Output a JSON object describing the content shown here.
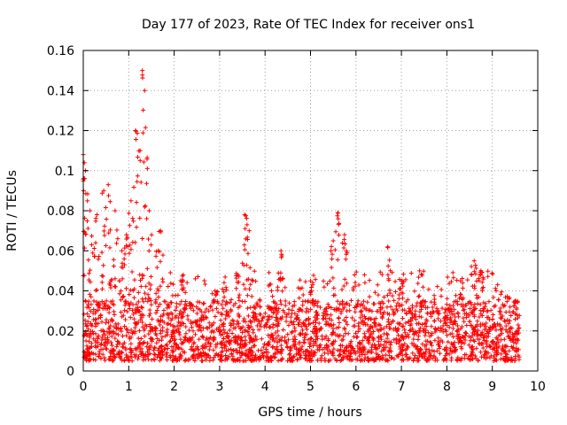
{
  "chart_data": {
    "type": "scatter",
    "title": "Day 177 of 2023, Rate Of TEC Index for receiver ons1",
    "xlabel": "GPS time / hours",
    "ylabel": "ROTI / TECUs",
    "xlim": [
      0,
      10
    ],
    "ylim": [
      0,
      0.16
    ],
    "xticks": [
      0,
      1,
      2,
      3,
      4,
      5,
      6,
      7,
      8,
      9,
      10
    ],
    "yticks": [
      0,
      0.02,
      0.04,
      0.06,
      0.08,
      0.1,
      0.12,
      0.14,
      0.16
    ],
    "xtick_labels": [
      "0",
      "1",
      "2",
      "3",
      "4",
      "5",
      "6",
      "7",
      "8",
      "9",
      "10"
    ],
    "ytick_labels": [
      "0",
      "0.02",
      "0.04",
      "0.06",
      "0.08",
      "0.1",
      "0.12",
      "0.14",
      "0.16"
    ],
    "grid": true,
    "marker": "+",
    "color": "#ff0000",
    "series": [
      {
        "name": "ROTI",
        "description": "dense band of points 0.005-0.035 TECU/s from 0 to ~9.6 h, with spikes",
        "x_range": [
          0,
          9.6
        ],
        "baseline_range": [
          0.005,
          0.035
        ],
        "peaks": [
          {
            "x": 0.0,
            "y": 0.108
          },
          {
            "x": 0.05,
            "y": 0.1
          },
          {
            "x": 0.15,
            "y": 0.08
          },
          {
            "x": 0.3,
            "y": 0.078
          },
          {
            "x": 0.45,
            "y": 0.09
          },
          {
            "x": 0.55,
            "y": 0.093
          },
          {
            "x": 0.7,
            "y": 0.08
          },
          {
            "x": 0.85,
            "y": 0.06
          },
          {
            "x": 0.95,
            "y": 0.068
          },
          {
            "x": 1.05,
            "y": 0.085
          },
          {
            "x": 1.15,
            "y": 0.12
          },
          {
            "x": 1.25,
            "y": 0.11
          },
          {
            "x": 1.3,
            "y": 0.15
          },
          {
            "x": 1.35,
            "y": 0.14
          },
          {
            "x": 1.45,
            "y": 0.08
          },
          {
            "x": 1.65,
            "y": 0.06
          },
          {
            "x": 1.7,
            "y": 0.07
          },
          {
            "x": 2.2,
            "y": 0.048
          },
          {
            "x": 2.9,
            "y": 0.04
          },
          {
            "x": 3.4,
            "y": 0.048
          },
          {
            "x": 3.55,
            "y": 0.078
          },
          {
            "x": 3.65,
            "y": 0.07
          },
          {
            "x": 4.35,
            "y": 0.06
          },
          {
            "x": 5.0,
            "y": 0.045
          },
          {
            "x": 5.5,
            "y": 0.065
          },
          {
            "x": 5.6,
            "y": 0.079
          },
          {
            "x": 5.75,
            "y": 0.068
          },
          {
            "x": 6.7,
            "y": 0.062
          },
          {
            "x": 7.0,
            "y": 0.045
          },
          {
            "x": 7.4,
            "y": 0.05
          },
          {
            "x": 8.3,
            "y": 0.045
          },
          {
            "x": 8.6,
            "y": 0.055
          },
          {
            "x": 8.75,
            "y": 0.05
          },
          {
            "x": 9.5,
            "y": 0.035
          }
        ]
      }
    ]
  }
}
